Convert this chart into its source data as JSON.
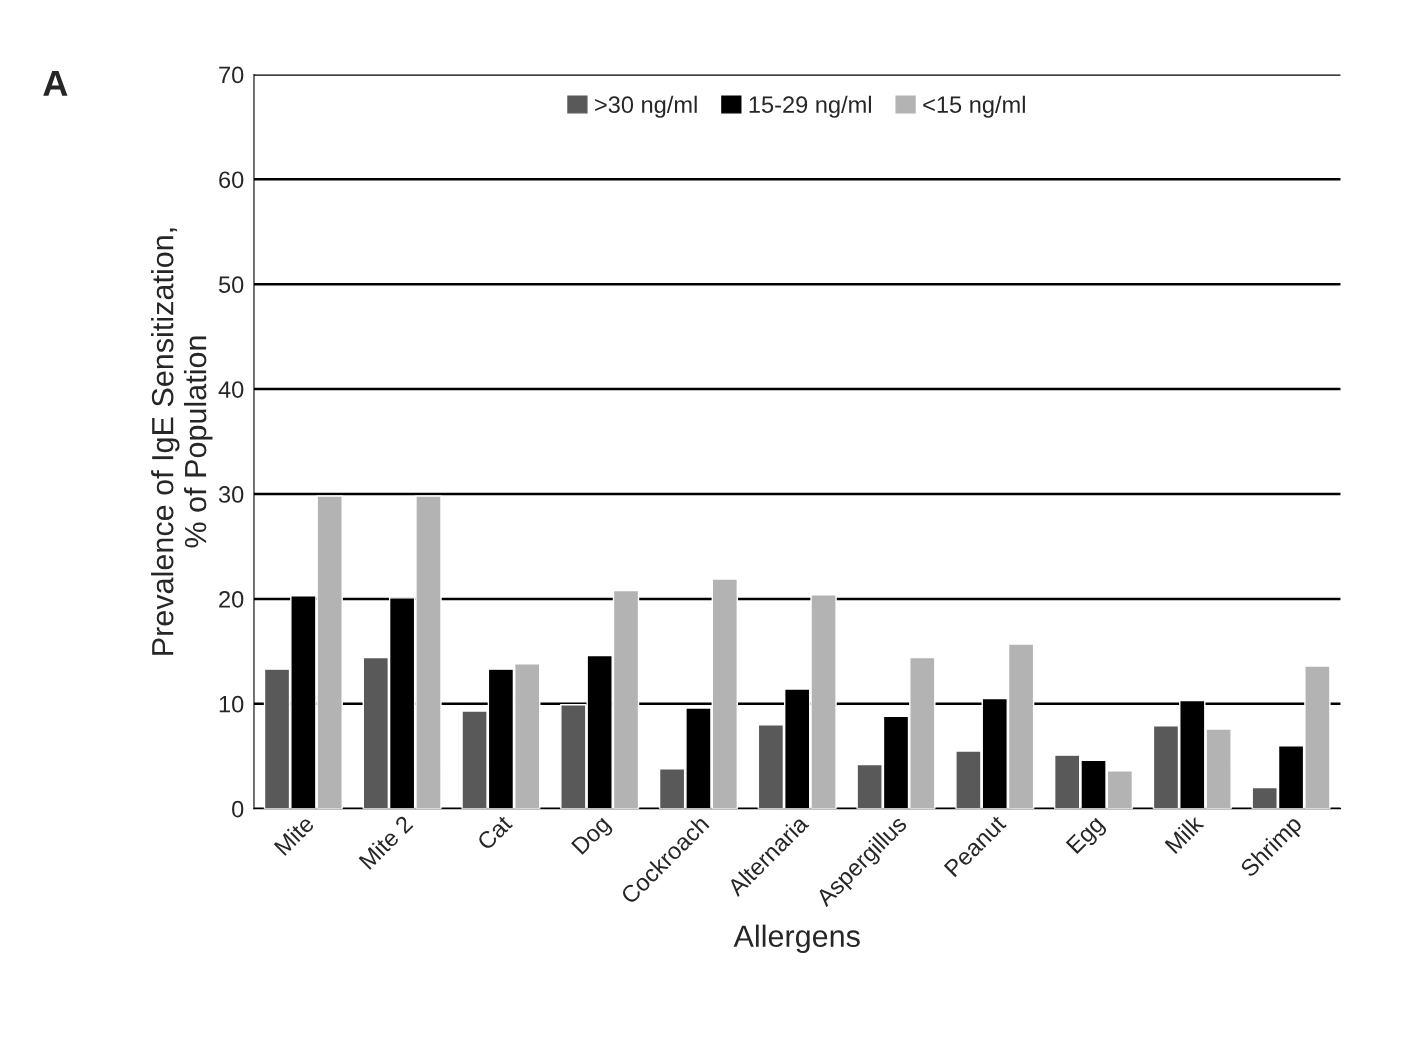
{
  "chart_data": {
    "type": "bar",
    "xlabel": "Allergens",
    "ylabel": "Prevalence of IgE Sensitization,\n% of Population",
    "annotations": [
      "A"
    ],
    "categories": [
      "Mite",
      "Mite 2",
      "Cat",
      "Dog",
      "Cockroach",
      "Alternaria",
      "Aspergillus",
      "Peanut",
      "Egg",
      "Milk",
      "Shrimp"
    ],
    "series": [
      {
        "name": ">30 ng/ml",
        "color": "#595959",
        "values": [
          13.3,
          14.4,
          9.3,
          9.9,
          3.8,
          8.0,
          4.2,
          5.5,
          5.1,
          7.9,
          2.0
        ]
      },
      {
        "name": "15-29 ng/ml",
        "color": "#000000",
        "values": [
          20.3,
          20.1,
          13.3,
          14.6,
          9.6,
          11.4,
          8.8,
          10.5,
          4.6,
          10.3,
          6.0
        ]
      },
      {
        "name": "<15 ng/ml",
        "color": "#b3b3b3",
        "values": [
          29.8,
          29.8,
          13.8,
          20.8,
          21.9,
          20.4,
          14.4,
          15.7,
          3.6,
          7.6,
          13.6
        ]
      }
    ],
    "ylim": [
      0,
      70
    ],
    "yticks": [
      0,
      10,
      20,
      30,
      40,
      50,
      60,
      70
    ],
    "grid": "y",
    "legend": "top"
  }
}
